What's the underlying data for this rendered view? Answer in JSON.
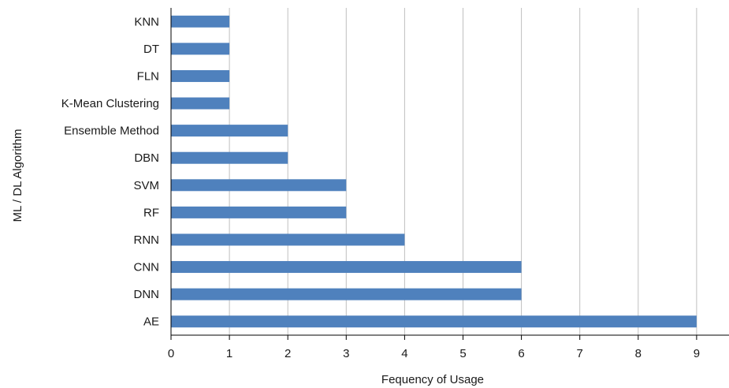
{
  "chart_data": {
    "type": "bar",
    "orientation": "horizontal",
    "categories": [
      "AE",
      "DNN",
      "CNN",
      "RNN",
      "RF",
      "SVM",
      "DBN",
      "Ensemble Method",
      "K-Mean Clustering",
      "FLN",
      "DT",
      "KNN"
    ],
    "values": [
      9,
      6,
      6,
      4,
      3,
      3,
      2,
      2,
      1,
      1,
      1,
      1
    ],
    "xlabel": "Fequency of Usage",
    "ylabel": "ML / DL Algorithm",
    "xlim": [
      0,
      9.5
    ],
    "xticks": [
      "0",
      "1",
      "2",
      "3",
      "4",
      "5",
      "6",
      "7",
      "8",
      "9"
    ],
    "grid": "vertical",
    "legend": "none",
    "bar_color": "#4f81bd",
    "grid_color": "#bfbfbf",
    "axis_color": "#000000"
  }
}
